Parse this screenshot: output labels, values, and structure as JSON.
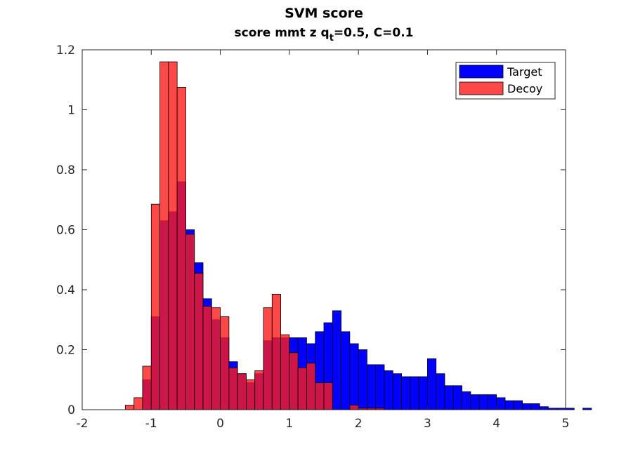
{
  "chart_data": {
    "type": "bar",
    "title": "SVM score",
    "subtitle": {
      "prefix": "score mmt z q",
      "subscript": "t",
      "suffix": "=0.5, C=0.1"
    },
    "xlabel": "",
    "ylabel": "",
    "xlim": [
      -2,
      5
    ],
    "ylim": [
      0,
      1.2
    ],
    "xticks": [
      -2,
      -1,
      0,
      1,
      2,
      3,
      4,
      5
    ],
    "yticks": [
      0,
      0.2,
      0.4,
      0.6,
      0.8,
      1,
      1.2
    ],
    "xtick_labels": [
      "-2",
      "-1",
      "0",
      "1",
      "2",
      "3",
      "4",
      "5"
    ],
    "ytick_labels": [
      "0",
      "0.2",
      "0.4",
      "0.6",
      "0.8",
      "1",
      "1.2"
    ],
    "grid": false,
    "legend_position": "top-right",
    "bin_width": 0.125,
    "series": [
      {
        "name": "Target",
        "color": "#0000ff",
        "opacity": 1.0,
        "bin_start": -1.125,
        "values": [
          0.1,
          0.31,
          0.63,
          0.66,
          0.76,
          0.6,
          0.49,
          0.37,
          0.3,
          0.24,
          0.16,
          0.12,
          0.09,
          0.12,
          0.23,
          0.24,
          0.24,
          0.24,
          0.24,
          0.22,
          0.26,
          0.29,
          0.33,
          0.26,
          0.22,
          0.2,
          0.15,
          0.15,
          0.13,
          0.12,
          0.11,
          0.11,
          0.11,
          0.17,
          0.12,
          0.08,
          0.08,
          0.06,
          0.05,
          0.05,
          0.05,
          0.04,
          0.03,
          0.03,
          0.02,
          0.02,
          0.01,
          0.005,
          0.005,
          0.005,
          0.0,
          0.005
        ]
      },
      {
        "name": "Decoy",
        "color": "#ff1a1a",
        "opacity": 0.8,
        "bin_start": -1.375,
        "values": [
          0.015,
          0.04,
          0.145,
          0.685,
          1.16,
          1.16,
          1.075,
          0.585,
          0.455,
          0.345,
          0.34,
          0.31,
          0.14,
          0.12,
          0.1,
          0.13,
          0.34,
          0.385,
          0.25,
          0.19,
          0.14,
          0.155,
          0.09,
          0.09,
          0.0,
          0.0,
          0.015,
          0.005,
          0.005,
          0.005
        ]
      }
    ]
  }
}
